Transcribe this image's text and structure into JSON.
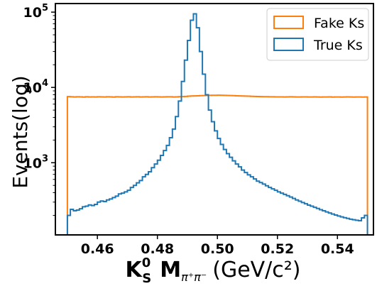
{
  "chart_data": {
    "type": "histogram",
    "xlabel": {
      "main": "K",
      "sup": "0",
      "sub": "S",
      "mass_symbol": "M",
      "mass_sub": "π⁺π⁻",
      "units": "(GeV/c²)"
    },
    "ylabel": "Events(log)",
    "yscale": "log",
    "xlim": [
      0.446,
      0.552
    ],
    "ylim": [
      110,
      130000
    ],
    "x_ticks": [
      0.46,
      0.48,
      0.5,
      0.52,
      0.54
    ],
    "x_tick_labels": [
      "0.46",
      "0.48",
      "0.50",
      "0.52",
      "0.54"
    ],
    "y_ticks": [
      1000,
      10000,
      100000
    ],
    "y_tick_labels": [
      {
        "base": "10",
        "exp": "3"
      },
      {
        "base": "10",
        "exp": "4"
      },
      {
        "base": "10",
        "exp": "5"
      }
    ],
    "legend_position": "top-right",
    "bins": {
      "start": 0.45,
      "end": 0.55,
      "count": 100
    },
    "series": [
      {
        "name": "Fake Ks",
        "color": "#ff7f0e",
        "values": [
          7550,
          7520,
          7480,
          7510,
          7490,
          7460,
          7520,
          7480,
          7500,
          7470,
          7510,
          7490,
          7480,
          7520,
          7500,
          7460,
          7510,
          7490,
          7470,
          7500,
          7520,
          7480,
          7490,
          7510,
          7480,
          7500,
          7520,
          7470,
          7490,
          7510,
          7500,
          7480,
          7490,
          7520,
          7510,
          7480,
          7500,
          7530,
          7550,
          7600,
          7650,
          7700,
          7720,
          7750,
          7780,
          7800,
          7820,
          7850,
          7860,
          7870,
          7880,
          7860,
          7850,
          7830,
          7800,
          7780,
          7750,
          7720,
          7700,
          7680,
          7650,
          7620,
          7600,
          7580,
          7560,
          7540,
          7530,
          7520,
          7510,
          7500,
          7500,
          7490,
          7480,
          7500,
          7510,
          7490,
          7470,
          7480,
          7500,
          7490,
          7480,
          7470,
          7490,
          7480,
          7460,
          7480,
          7470,
          7490,
          7460,
          7480,
          7470,
          7460,
          7480,
          7490,
          7470,
          7460,
          7480,
          7470,
          7460,
          7470
        ]
      },
      {
        "name": "True Ks",
        "color": "#1f77b4",
        "values": [
          200,
          240,
          230,
          235,
          245,
          260,
          265,
          275,
          270,
          280,
          300,
          310,
          305,
          320,
          330,
          345,
          360,
          385,
          395,
          410,
          430,
          470,
          500,
          540,
          580,
          650,
          700,
          760,
          860,
          960,
          1080,
          1250,
          1450,
          1700,
          2150,
          2800,
          4100,
          6600,
          12000,
          23000,
          42000,
          78000,
          95000,
          62000,
          30000,
          15000,
          8000,
          5000,
          3500,
          2650,
          2100,
          1750,
          1500,
          1320,
          1180,
          1060,
          960,
          880,
          800,
          740,
          690,
          650,
          610,
          570,
          545,
          520,
          495,
          470,
          450,
          430,
          410,
          395,
          380,
          365,
          350,
          335,
          320,
          308,
          296,
          285,
          274,
          265,
          256,
          247,
          238,
          230,
          222,
          215,
          208,
          202,
          196,
          191,
          186,
          182,
          178,
          175,
          172,
          170,
          185,
          200
        ]
      }
    ]
  }
}
